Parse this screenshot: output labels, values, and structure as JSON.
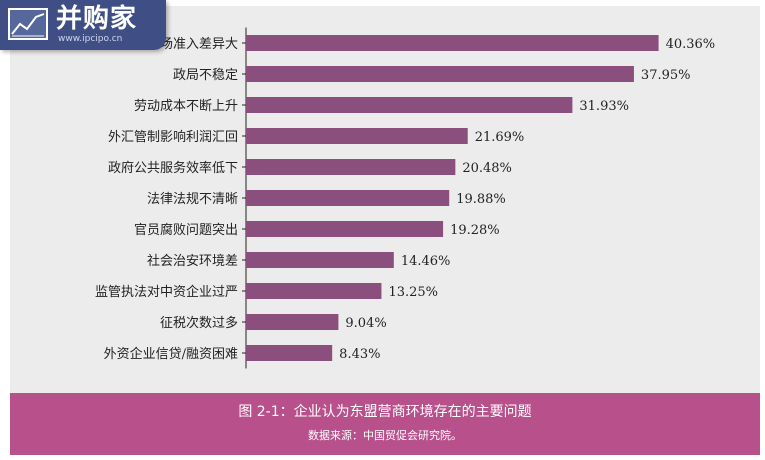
{
  "watermark": {
    "brand": "并购家",
    "url": "www.ipcipo.cn"
  },
  "caption": {
    "title": "图 2-1：企业认为东盟营商环境存在的主要问题",
    "source": "数据来源：中国贸促会研究院。"
  },
  "colors": {
    "bar": "#8a4f7d",
    "panel": "#ececec",
    "caption_bg": "#b7508b",
    "logo_bg": "#3f4f86"
  },
  "chart_data": {
    "type": "bar",
    "orientation": "horizontal",
    "categories": [
      "市场准入差异大",
      "政局不稳定",
      "劳动成本不断上升",
      "外汇管制影响利润汇回",
      "政府公共服务效率低下",
      "法律法规不清晰",
      "官员腐败问题突出",
      "社会治安环境差",
      "监管执法对中资企业过严",
      "征税次数过多",
      "外资企业信贷/融资困难"
    ],
    "values": [
      40.36,
      37.95,
      31.93,
      21.69,
      20.48,
      19.88,
      19.28,
      14.46,
      13.25,
      9.04,
      8.43
    ],
    "value_labels": [
      "40.36%",
      "37.95%",
      "31.93%",
      "21.69%",
      "20.48%",
      "19.88%",
      "19.28%",
      "14.46%",
      "13.25%",
      "9.04%",
      "8.43%"
    ],
    "unit": "%",
    "xlim": [
      0,
      45
    ],
    "grid": false,
    "legend": "none"
  }
}
